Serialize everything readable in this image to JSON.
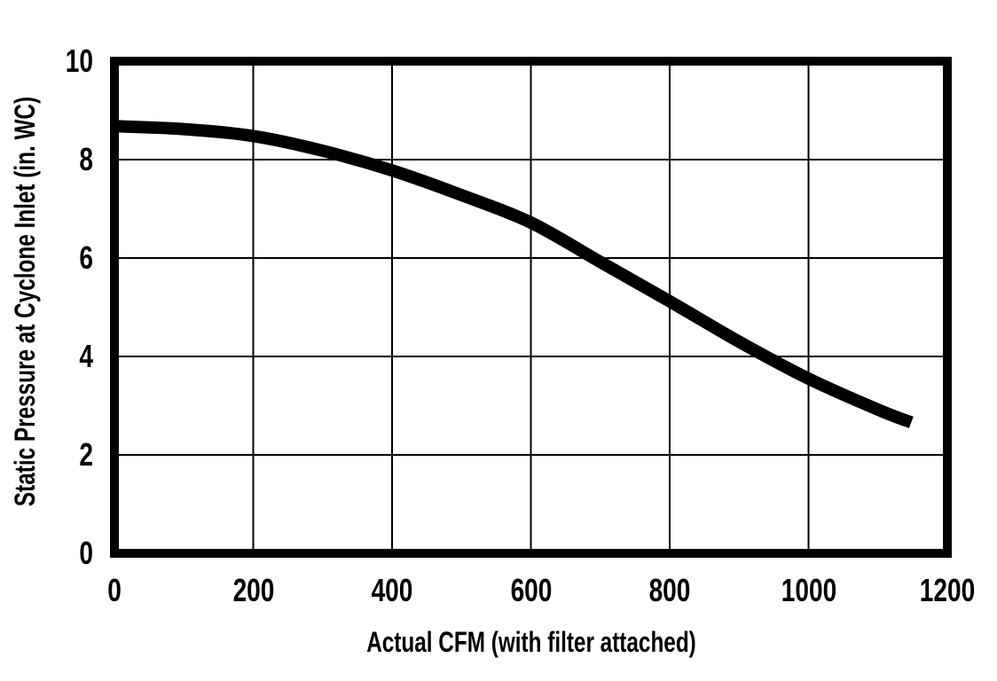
{
  "chart_data": {
    "type": "line",
    "title": "",
    "xlabel": "Actual CFM (with filter attached)",
    "ylabel": "Static Pressure at Cyclone Inlet (in. WC)",
    "xlim": [
      0,
      1200
    ],
    "ylim": [
      0,
      10
    ],
    "x_ticks": [
      "0",
      "200",
      "400",
      "600",
      "800",
      "1000",
      "1200"
    ],
    "x_tick_values": [
      0,
      200,
      400,
      600,
      800,
      1000,
      1200
    ],
    "y_ticks": [
      "0",
      "2",
      "4",
      "6",
      "8",
      "10"
    ],
    "y_tick_values": [
      0,
      2,
      4,
      6,
      8,
      10
    ],
    "grid": true,
    "legend_position": "none",
    "background_color": "#ffffff",
    "axis_color": "#000000",
    "grid_color": "#000000",
    "series": [
      {
        "name": "static-pressure-vs-cfm",
        "color": "#000000",
        "x": [
          0,
          100,
          200,
          300,
          400,
          500,
          600,
          700,
          800,
          900,
          1000,
          1100,
          1148
        ],
        "y": [
          8.68,
          8.62,
          8.48,
          8.18,
          7.78,
          7.28,
          6.72,
          5.92,
          5.12,
          4.3,
          3.55,
          2.92,
          2.66
        ]
      }
    ]
  }
}
